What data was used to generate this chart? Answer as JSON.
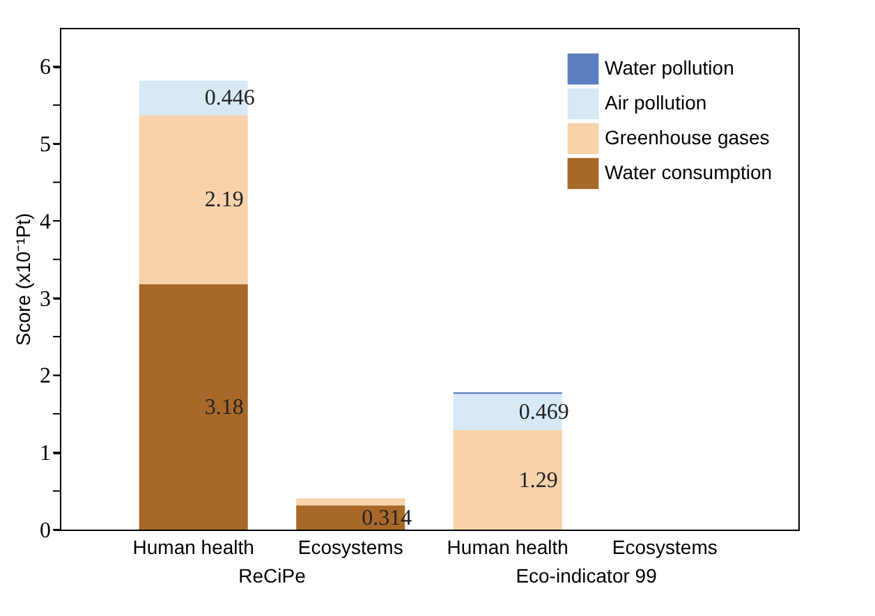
{
  "chart_data": {
    "type": "bar",
    "stacked": true,
    "categories": [
      "Human health",
      "Ecosystems",
      "Human health",
      "Ecosystems"
    ],
    "ylabel": "Score (x10⁻¹Pt)",
    "ylim": [
      0,
      6.5
    ],
    "yticks": [
      0,
      {
        "value": 0.5,
        "label": null
      },
      1,
      {
        "value": 1.5,
        "label": null
      },
      2,
      {
        "value": 2.5,
        "label": null
      },
      3,
      {
        "value": 3.5,
        "label": null
      },
      4,
      {
        "value": 4.5,
        "label": null
      },
      5,
      {
        "value": 5.5,
        "label": null
      },
      6
    ],
    "series": [
      {
        "name": "Water consumption",
        "color": "#a8682a",
        "values": [
          3.18,
          0.314,
          null,
          null
        ],
        "value_labels": [
          "3.18",
          "0.314",
          null,
          null
        ]
      },
      {
        "name": "Greenhouse gases",
        "color": "#f7d2ab",
        "values": [
          2.19,
          0.09,
          1.29,
          null
        ],
        "value_labels": [
          "2.19",
          null,
          "1.29",
          null
        ]
      },
      {
        "name": "Air pollution",
        "color": "#d6e9f5",
        "values": [
          0.446,
          null,
          0.469,
          null
        ],
        "value_labels": [
          "0.446",
          null,
          "0.469",
          null
        ]
      },
      {
        "name": "Water pollution",
        "color": "#5b7fc0",
        "values": [
          null,
          null,
          0.02,
          null
        ],
        "value_labels": [
          null,
          null,
          null,
          null
        ]
      }
    ],
    "annotations": [
      "ReCiPe",
      "Eco-indicator 99"
    ],
    "legend": "top right",
    "grid": false
  }
}
